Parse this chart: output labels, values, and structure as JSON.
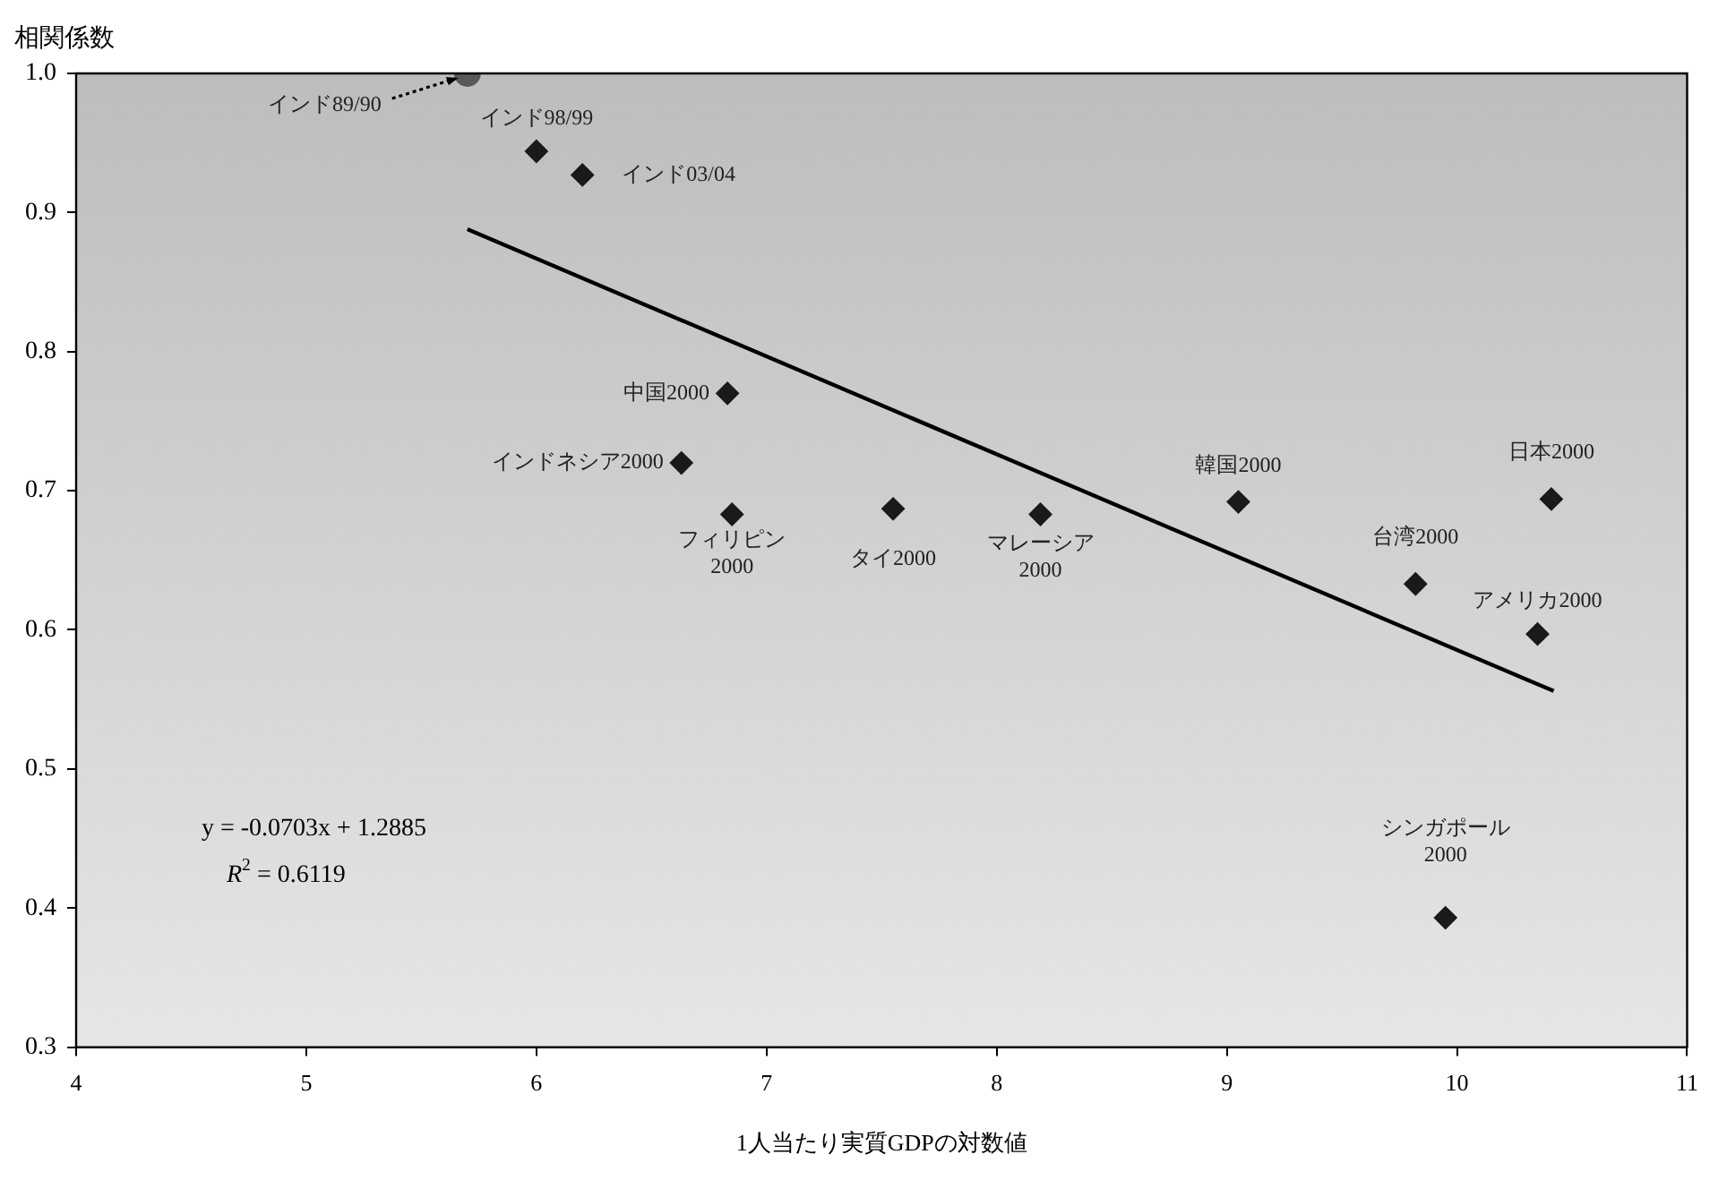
{
  "chart_data": {
    "type": "scatter",
    "xlabel": "1人当たり実質GDPの対数値",
    "ylabel": "相関係数",
    "xlim": [
      4,
      11
    ],
    "xticks": [
      4,
      5,
      6,
      7,
      8,
      9,
      10,
      11
    ],
    "ylim": [
      0.3,
      1.0
    ],
    "yticks": [
      {
        "value": 0.3,
        "label": "0.3"
      },
      {
        "value": 0.4,
        "label": "0.4"
      },
      {
        "value": 0.5,
        "label": "0.5"
      },
      {
        "value": 0.6,
        "label": "0.6"
      },
      {
        "value": 0.7,
        "label": "0.7"
      },
      {
        "value": 0.8,
        "label": "0.8"
      },
      {
        "value": 0.9,
        "label": "0.9"
      },
      {
        "value": 1.0,
        "label": "1.0"
      }
    ],
    "grid": false,
    "series": [
      {
        "type": "scatter",
        "marker": "circle",
        "color": "#595959",
        "x": [
          5.7
        ],
        "values": [
          1.0
        ]
      },
      {
        "type": "scatter",
        "marker": "diamond",
        "color": "#1a1a1a",
        "x": [
          6.0,
          6.2,
          6.83,
          6.63,
          6.85,
          7.55,
          8.19,
          9.05,
          9.82,
          10.41,
          10.35,
          9.95
        ],
        "values": [
          0.944,
          0.927,
          0.77,
          0.72,
          0.683,
          0.687,
          0.683,
          0.692,
          0.633,
          0.694,
          0.597,
          0.393
        ]
      },
      {
        "type": "line",
        "marker": "none",
        "color": "#000000",
        "x": [
          5.7,
          10.42
        ],
        "values": [
          0.888,
          0.556
        ]
      }
    ],
    "annotations": [
      {
        "text": "インド89/90",
        "x": 5.7,
        "y": 1.0
      },
      {
        "text": "インド98/99",
        "x": 6.0,
        "y": 0.944
      },
      {
        "text": "インド03/04",
        "x": 6.2,
        "y": 0.927
      },
      {
        "text": "中国2000",
        "x": 6.83,
        "y": 0.77
      },
      {
        "text": "インドネシア2000",
        "x": 6.63,
        "y": 0.72
      },
      {
        "text": "フィリピン\n2000",
        "x": 6.85,
        "y": 0.683
      },
      {
        "text": "タイ2000",
        "x": 7.55,
        "y": 0.687
      },
      {
        "text": "マレーシア\n2000",
        "x": 8.19,
        "y": 0.683
      },
      {
        "text": "韓国2000",
        "x": 9.05,
        "y": 0.692
      },
      {
        "text": "台湾2000",
        "x": 9.82,
        "y": 0.633
      },
      {
        "text": "日本2000",
        "x": 10.41,
        "y": 0.694
      },
      {
        "text": "アメリカ2000",
        "x": 10.35,
        "y": 0.597
      },
      {
        "text": "シンガポール\n2000",
        "x": 9.95,
        "y": 0.393
      },
      "y = -0.0703x + 1.2885",
      "R$^{2}$ = 0.6119"
    ]
  }
}
